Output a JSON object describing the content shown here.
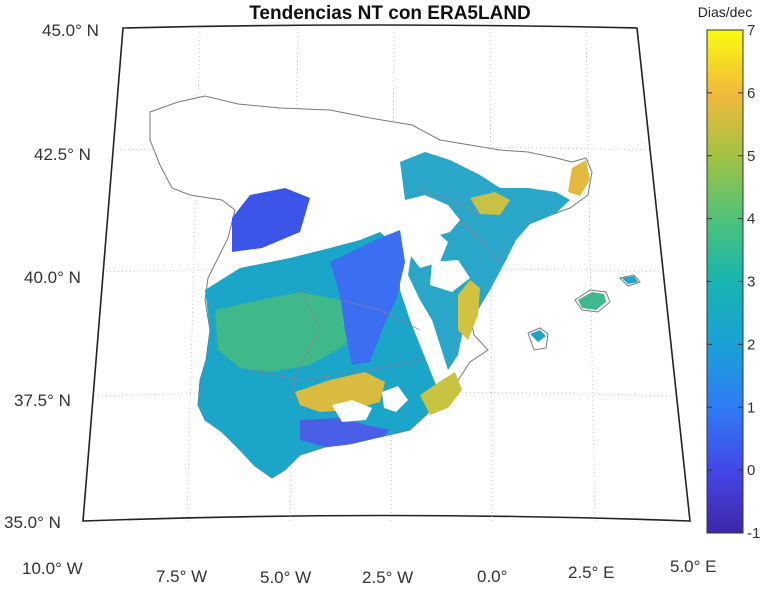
{
  "title": "Tendencias NT con ERA5LAND",
  "colorbar": {
    "label": "Dias/dec",
    "min": -1,
    "max": 7,
    "ticks": [
      "7",
      "6",
      "5",
      "4",
      "3",
      "2",
      "1",
      "0",
      "-1"
    ],
    "colormap": "parula"
  },
  "lat_labels": [
    "45.0° N",
    "42.5° N",
    "40.0° N",
    "37.5° N",
    "35.0° N"
  ],
  "lon_labels": [
    "10.0° W",
    "7.5° W",
    "5.0° W",
    "2.5° W",
    "0.0°",
    "2.5° E",
    "5.0° E"
  ],
  "map_extent": {
    "lon": [
      -10,
      5
    ],
    "lat": [
      35,
      45
    ]
  },
  "colors": {
    "low": "#3e26a8",
    "mid": "#2bb3a8",
    "high": "#f9fb0e",
    "coastline": "#7a7a7a",
    "grid": "#b0b0b0"
  }
}
